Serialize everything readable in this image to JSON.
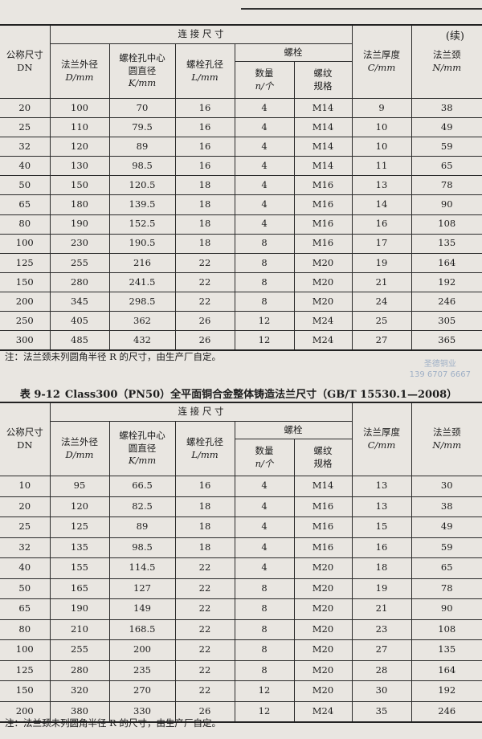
{
  "continued": "(续)",
  "headers": {
    "dn": "公称尺寸",
    "dn_unit": "DN",
    "connection": "连 接 尺 寸",
    "outer_d": "法兰外径",
    "outer_d_unit": "D/mm",
    "bolt_circle": "螺栓孔中心圆直径",
    "bolt_circle_unit": "K/mm",
    "bolt_hole": "螺栓孔径",
    "bolt_hole_unit": "L/mm",
    "bolt": "螺栓",
    "qty": "数量",
    "qty_unit": "n/个",
    "thread": "螺纹规格",
    "thickness": "法兰厚度",
    "thickness_unit": "C/mm",
    "neck": "法兰颈",
    "neck_unit": "N/mm"
  },
  "table1": {
    "rows": [
      [
        "20",
        "100",
        "70",
        "16",
        "4",
        "M14",
        "9",
        "38"
      ],
      [
        "25",
        "110",
        "79.5",
        "16",
        "4",
        "M14",
        "10",
        "49"
      ],
      [
        "32",
        "120",
        "89",
        "16",
        "4",
        "M14",
        "10",
        "59"
      ],
      [
        "40",
        "130",
        "98.5",
        "16",
        "4",
        "M14",
        "11",
        "65"
      ],
      [
        "50",
        "150",
        "120.5",
        "18",
        "4",
        "M16",
        "13",
        "78"
      ],
      [
        "65",
        "180",
        "139.5",
        "18",
        "4",
        "M16",
        "14",
        "90"
      ],
      [
        "80",
        "190",
        "152.5",
        "18",
        "4",
        "M16",
        "16",
        "108"
      ],
      [
        "100",
        "230",
        "190.5",
        "18",
        "8",
        "M16",
        "17",
        "135"
      ],
      [
        "125",
        "255",
        "216",
        "22",
        "8",
        "M20",
        "19",
        "164"
      ],
      [
        "150",
        "280",
        "241.5",
        "22",
        "8",
        "M20",
        "21",
        "192"
      ],
      [
        "200",
        "345",
        "298.5",
        "22",
        "8",
        "M20",
        "24",
        "246"
      ],
      [
        "250",
        "405",
        "362",
        "26",
        "12",
        "M24",
        "25",
        "305"
      ],
      [
        "300",
        "485",
        "432",
        "26",
        "12",
        "M24",
        "27",
        "365"
      ]
    ],
    "note": "注：法兰颈未列圆角半径 R 的尺寸，由生产厂自定。"
  },
  "watermark": {
    "line1": "圣德铜业",
    "line2": "139 6707 6667"
  },
  "table2": {
    "number": "表 9-12",
    "title": "Class300（PN50）全平面铜合金整体铸造法兰尺寸（GB/T 15530.1—2008）",
    "rows": [
      [
        "10",
        "95",
        "66.5",
        "16",
        "4",
        "M14",
        "13",
        "30"
      ],
      [
        "20",
        "120",
        "82.5",
        "18",
        "4",
        "M16",
        "13",
        "38"
      ],
      [
        "25",
        "125",
        "89",
        "18",
        "4",
        "M16",
        "15",
        "49"
      ],
      [
        "32",
        "135",
        "98.5",
        "18",
        "4",
        "M16",
        "16",
        "59"
      ],
      [
        "40",
        "155",
        "114.5",
        "22",
        "4",
        "M20",
        "18",
        "65"
      ],
      [
        "50",
        "165",
        "127",
        "22",
        "8",
        "M20",
        "19",
        "78"
      ],
      [
        "65",
        "190",
        "149",
        "22",
        "8",
        "M20",
        "21",
        "90"
      ],
      [
        "80",
        "210",
        "168.5",
        "22",
        "8",
        "M20",
        "23",
        "108"
      ],
      [
        "100",
        "255",
        "200",
        "22",
        "8",
        "M20",
        "27",
        "135"
      ],
      [
        "125",
        "280",
        "235",
        "22",
        "8",
        "M20",
        "28",
        "164"
      ],
      [
        "150",
        "320",
        "270",
        "22",
        "12",
        "M20",
        "30",
        "192"
      ],
      [
        "200",
        "380",
        "330",
        "26",
        "12",
        "M24",
        "35",
        "246"
      ]
    ],
    "note": "注：法兰颈未列圆角半径 R 的尺寸，由生产厂自定。"
  }
}
